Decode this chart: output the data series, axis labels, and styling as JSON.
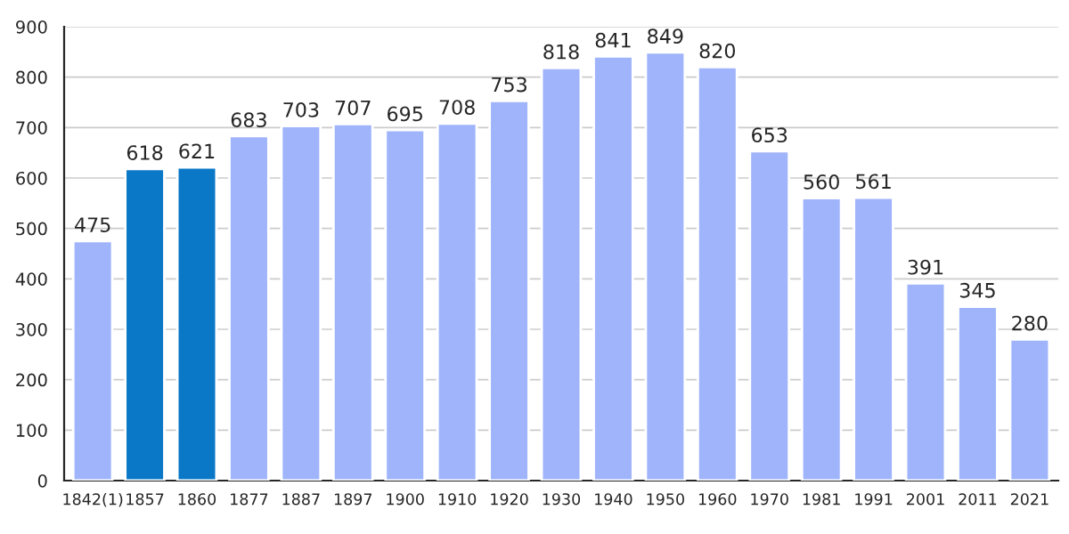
{
  "chart_data": {
    "type": "bar",
    "categories": [
      "1842(1)",
      "1857",
      "1860",
      "1877",
      "1887",
      "1897",
      "1900",
      "1910",
      "1920",
      "1930",
      "1940",
      "1950",
      "1960",
      "1970",
      "1981",
      "1991",
      "2001",
      "2011",
      "2021"
    ],
    "values": [
      475,
      618,
      621,
      683,
      703,
      707,
      695,
      708,
      753,
      818,
      841,
      849,
      820,
      653,
      560,
      561,
      391,
      345,
      280
    ],
    "colors": [
      "#9fb4fb",
      "#0a78c6",
      "#0a78c6",
      "#9fb4fb",
      "#9fb4fb",
      "#9fb4fb",
      "#9fb4fb",
      "#9fb4fb",
      "#9fb4fb",
      "#9fb4fb",
      "#9fb4fb",
      "#9fb4fb",
      "#9fb4fb",
      "#9fb4fb",
      "#9fb4fb",
      "#9fb4fb",
      "#9fb4fb",
      "#9fb4fb",
      "#9fb4fb"
    ],
    "ylim": [
      0,
      900
    ],
    "yticks": [
      0,
      100,
      200,
      300,
      400,
      500,
      600,
      700,
      800,
      900
    ],
    "grid": "y",
    "data_labels": true
  }
}
